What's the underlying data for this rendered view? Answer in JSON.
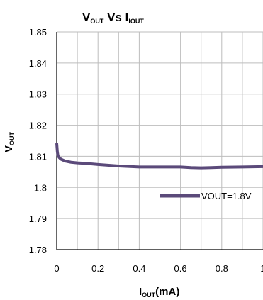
{
  "chart_data": {
    "type": "line",
    "title": {
      "main_a": "V",
      "sub_a": "OUT",
      "main_b": " Vs  I",
      "sub_b": "IOUT"
    },
    "xlabel": {
      "main": "I",
      "sub": "OUT",
      "tail": "(mA)"
    },
    "ylabel": {
      "main": "V",
      "sub": "OUT"
    },
    "xlim": [
      0,
      1.0
    ],
    "ylim": [
      1.78,
      1.85
    ],
    "x_ticks": [
      0,
      0.2,
      0.4,
      0.6,
      0.8,
      1.0
    ],
    "x_tick_labels": [
      "0",
      "0.2",
      "0.4",
      "0.6",
      "0.8",
      "1"
    ],
    "y_ticks": [
      1.78,
      1.79,
      1.8,
      1.81,
      1.82,
      1.83,
      1.84,
      1.85
    ],
    "y_tick_labels": [
      "1.78",
      "1.79",
      "1.8",
      "1.81",
      "1.82",
      "1.83",
      "1.84",
      "1.85"
    ],
    "grid": true,
    "legend_position": "center-right",
    "series": [
      {
        "name": "VOUT=1.8V",
        "color": "#5b4a7a",
        "x": [
          0,
          0.003,
          0.006,
          0.012,
          0.02,
          0.04,
          0.07,
          0.1,
          0.15,
          0.2,
          0.3,
          0.4,
          0.5,
          0.6,
          0.65,
          0.7,
          0.75,
          0.8,
          0.9,
          1.0
        ],
        "y": [
          1.8142,
          1.8115,
          1.8102,
          1.8096,
          1.8091,
          1.8085,
          1.8081,
          1.8079,
          1.8077,
          1.8074,
          1.8069,
          1.8066,
          1.8066,
          1.8066,
          1.8064,
          1.8063,
          1.8064,
          1.8065,
          1.8066,
          1.8067
        ]
      }
    ]
  }
}
